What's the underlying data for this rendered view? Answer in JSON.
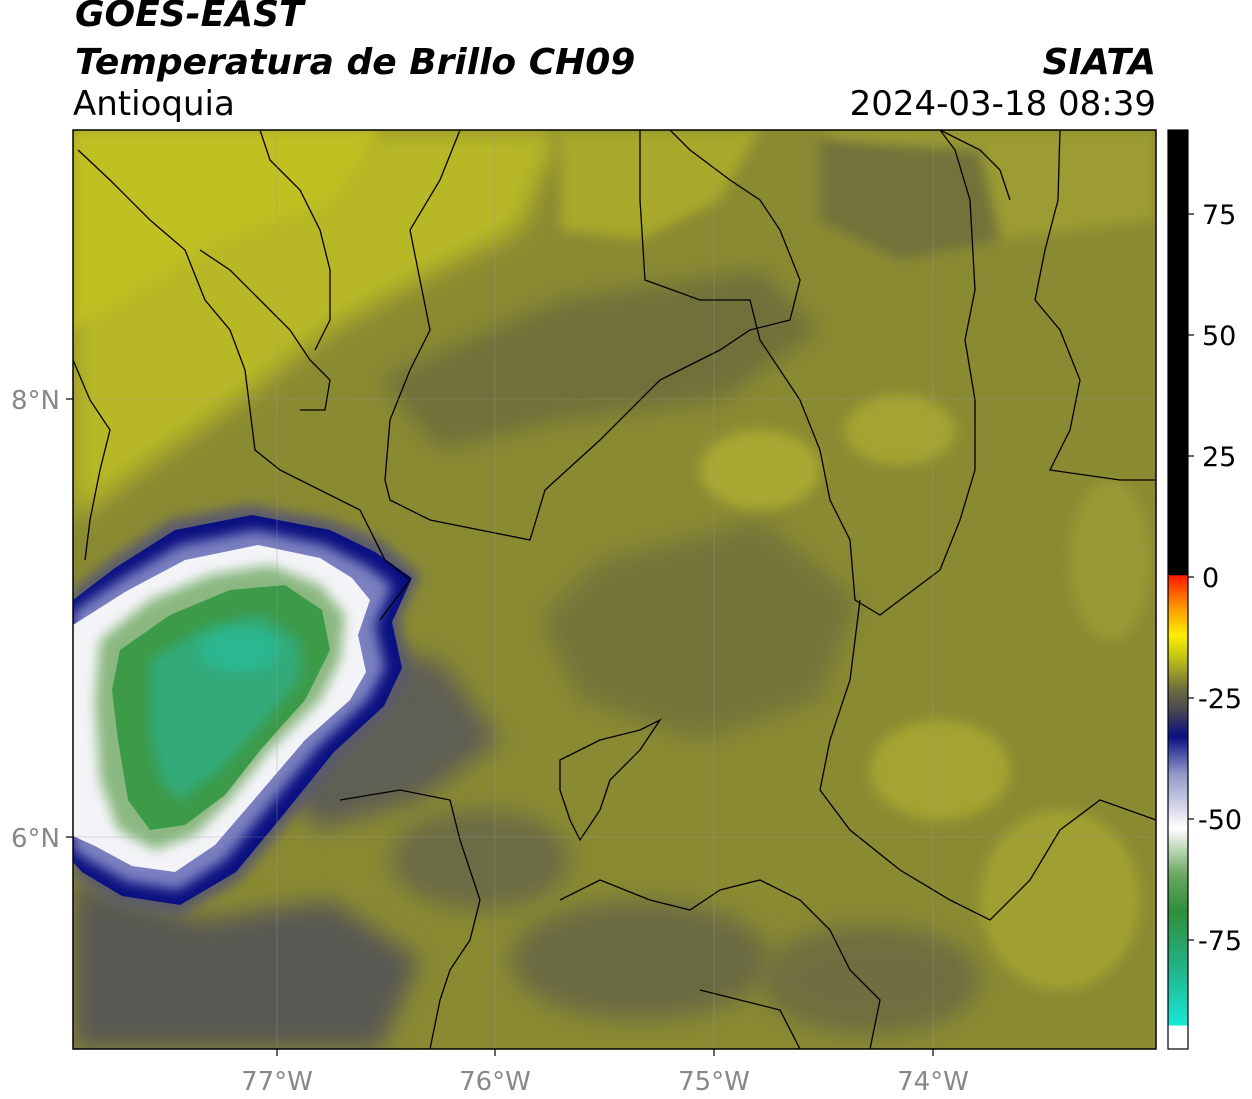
{
  "header": {
    "satellite": "GOES-EAST",
    "product": "Temperatura de Brillo CH09",
    "region": "Antioquia",
    "organization": "SIATA",
    "datetime": "2024-03-18 08:39"
  },
  "axes": {
    "lon_ticks": [
      "77°W",
      "76°W",
      "75°W",
      "74°W"
    ],
    "lat_ticks": [
      "8°N",
      "6°N"
    ]
  },
  "colorbar": {
    "ticks": [
      "75",
      "50",
      "25",
      "0",
      "-25",
      "-50",
      "-75"
    ],
    "colors": {
      "warm": "#000000",
      "red": "#ff1a00",
      "orange": "#ff8c00",
      "yellow": "#ffee00",
      "olive": "#7c7a2a",
      "gray": "#5a5a56",
      "navy": "#0b0f80",
      "white": "#ffffff",
      "green": "#3a8a38",
      "teal": "#18e0d0"
    }
  },
  "map_colors": {
    "background_olive": "#8a8a30",
    "light_olive": "#bcbc22",
    "dark_olive": "#6a6a3c",
    "gray_cloud": "#5c5c52",
    "cold_navy": "#0a1080",
    "cold_white": "#f4f4f8",
    "cold_green": "#3c9a48",
    "cold_teal": "#2ab890",
    "borders": "#000000"
  }
}
